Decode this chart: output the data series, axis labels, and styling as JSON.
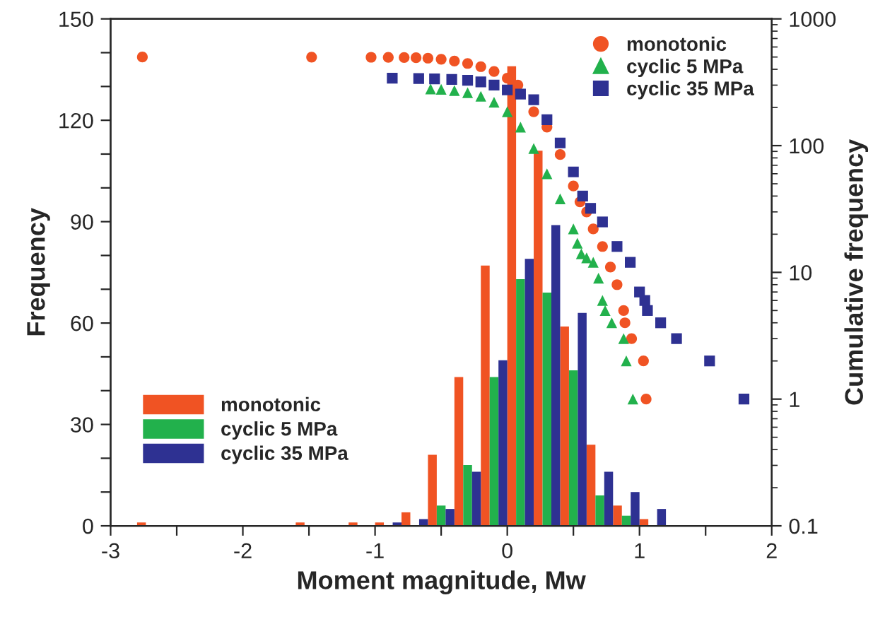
{
  "chart_data": {
    "type": "bar",
    "xlabel": "Moment magnitude, Mw",
    "ylabel": "Frequency",
    "y2label": "Cumulative frequency",
    "xlim": [
      -3,
      2
    ],
    "xticks": [
      -3,
      {
        "value": -2.5,
        "label": null
      },
      -2,
      {
        "value": -1.5,
        "label": null
      },
      -1,
      {
        "value": -0.5,
        "label": null
      },
      0,
      {
        "value": 0.5,
        "label": null
      },
      1,
      {
        "value": 1.5,
        "label": null
      },
      2
    ],
    "ylim": [
      0,
      150
    ],
    "yticks": [
      0,
      {
        "value": 10,
        "label": null
      },
      {
        "value": 20,
        "label": null
      },
      30,
      {
        "value": 40,
        "label": null
      },
      {
        "value": 50,
        "label": null
      },
      60,
      {
        "value": 70,
        "label": null
      },
      {
        "value": 80,
        "label": null
      },
      90,
      {
        "value": 100,
        "label": null
      },
      {
        "value": 110,
        "label": null
      },
      120,
      {
        "value": 130,
        "label": null
      },
      {
        "value": 140,
        "label": null
      },
      150
    ],
    "y2lim": [
      0.1,
      1000
    ],
    "y2ticks": [
      0.1,
      1,
      10,
      100,
      1000
    ],
    "log": "y2",
    "grid": false,
    "legend": [
      "bottom left",
      "top right"
    ],
    "series": [
      {
        "name": "monotonic",
        "color": "#f05323",
        "x": [
          -2.7,
          -1.5,
          -1.1,
          -0.9,
          -0.7,
          -0.5,
          -0.3,
          -0.1,
          0.1,
          0.3,
          0.5,
          0.7,
          0.9,
          1.1
        ],
        "values": [
          1,
          1,
          1,
          1,
          4,
          21,
          44,
          77,
          136,
          111,
          59,
          24,
          6,
          2
        ]
      },
      {
        "name": "cyclic 5 MPa",
        "color": "#22b14c",
        "x": [
          -0.5,
          -0.3,
          -0.1,
          0.1,
          0.3,
          0.5,
          0.7,
          0.9
        ],
        "values": [
          6,
          18,
          44,
          73,
          69,
          46,
          9,
          3
        ]
      },
      {
        "name": "cyclic 35 MPa",
        "color": "#2e3192",
        "x": [
          -0.9,
          -0.7,
          -0.5,
          -0.3,
          -0.1,
          0.1,
          0.3,
          0.5,
          0.7,
          0.9,
          1.1
        ],
        "values": [
          1,
          2,
          5,
          16,
          49,
          79,
          89,
          63,
          16,
          10,
          5
        ]
      },
      {
        "type": "scatter",
        "axis": "y2",
        "marker": "circle",
        "name": "monotonic",
        "color": "#f05323",
        "x": [
          -2.76,
          -1.48,
          -1.03,
          -0.9,
          -0.78,
          -0.69,
          -0.6,
          -0.5,
          -0.4,
          -0.3,
          -0.2,
          -0.1,
          0.0,
          0.08,
          0.2,
          0.3,
          0.4,
          0.5,
          0.55,
          0.6,
          0.65,
          0.72,
          0.78,
          0.83,
          0.88,
          0.89,
          0.94,
          1.03,
          1.05
        ],
        "values": [
          500,
          499,
          498,
          497,
          496,
          494,
          490,
          480,
          465,
          445,
          420,
          385,
          340,
          300,
          185,
          140,
          85,
          48,
          36,
          30,
          22,
          16,
          11,
          8,
          5,
          4,
          3,
          2,
          1
        ]
      },
      {
        "type": "scatter",
        "axis": "y2",
        "marker": "triangle",
        "name": "cyclic 5 MPa",
        "color": "#22b14c",
        "x": [
          -0.58,
          -0.5,
          -0.4,
          -0.3,
          -0.2,
          -0.1,
          0.0,
          0.1,
          0.2,
          0.3,
          0.4,
          0.5,
          0.53,
          0.56,
          0.6,
          0.65,
          0.69,
          0.72,
          0.74,
          0.79,
          0.88,
          0.9,
          0.95
        ],
        "values": [
          280,
          278,
          272,
          262,
          245,
          220,
          185,
          140,
          95,
          60,
          38,
          22,
          17,
          14,
          13,
          12,
          9,
          6,
          5,
          4,
          3,
          2,
          1
        ]
      },
      {
        "type": "scatter",
        "axis": "y2",
        "marker": "square",
        "name": "cyclic 35 MPa",
        "color": "#2e3192",
        "x": [
          -0.87,
          -0.67,
          -0.55,
          -0.42,
          -0.3,
          -0.2,
          -0.1,
          0.0,
          0.1,
          0.2,
          0.3,
          0.4,
          0.5,
          0.57,
          0.63,
          0.72,
          0.83,
          0.93,
          1.0,
          1.04,
          1.06,
          1.16,
          1.28,
          1.53,
          1.79
        ],
        "values": [
          340,
          338,
          336,
          333,
          328,
          318,
          300,
          275,
          255,
          230,
          160,
          105,
          62,
          40,
          32,
          25,
          16,
          12,
          7,
          6,
          5,
          4,
          3,
          2,
          1
        ]
      }
    ]
  }
}
